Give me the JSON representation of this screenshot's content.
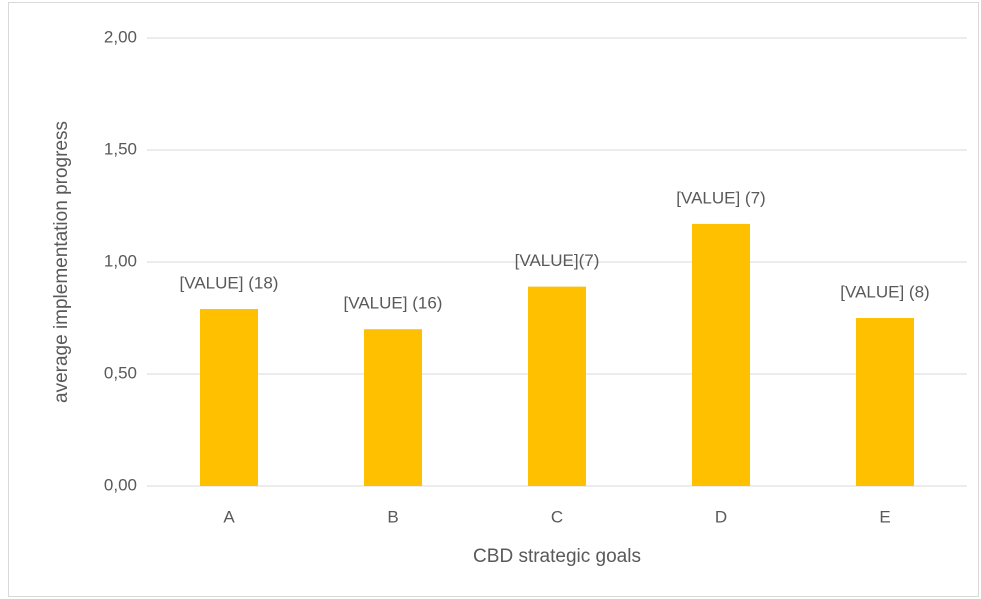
{
  "chart_data": {
    "type": "bar",
    "x_label": "CBD strategic goals",
    "y_label": "average implementation progress",
    "categories": [
      "A",
      "B",
      "C",
      "D",
      "E"
    ],
    "values": [
      0.79,
      0.7,
      0.89,
      1.17,
      0.75
    ],
    "value_labels": [
      "[VALUE] (18)",
      "[VALUE] (16)",
      "[VALUE](7)",
      "[VALUE] (7)",
      "[VALUE] (8)"
    ],
    "color": "#ffc000",
    "ylim": [
      0,
      2
    ],
    "yticks": [
      {
        "value": 0,
        "label": "0,00"
      },
      {
        "value": 0.5,
        "label": "0,50"
      },
      {
        "value": 1,
        "label": "1,00"
      },
      {
        "value": 1.5,
        "label": "1,50"
      },
      {
        "value": 2,
        "label": "2,00"
      }
    ],
    "grid": true
  }
}
